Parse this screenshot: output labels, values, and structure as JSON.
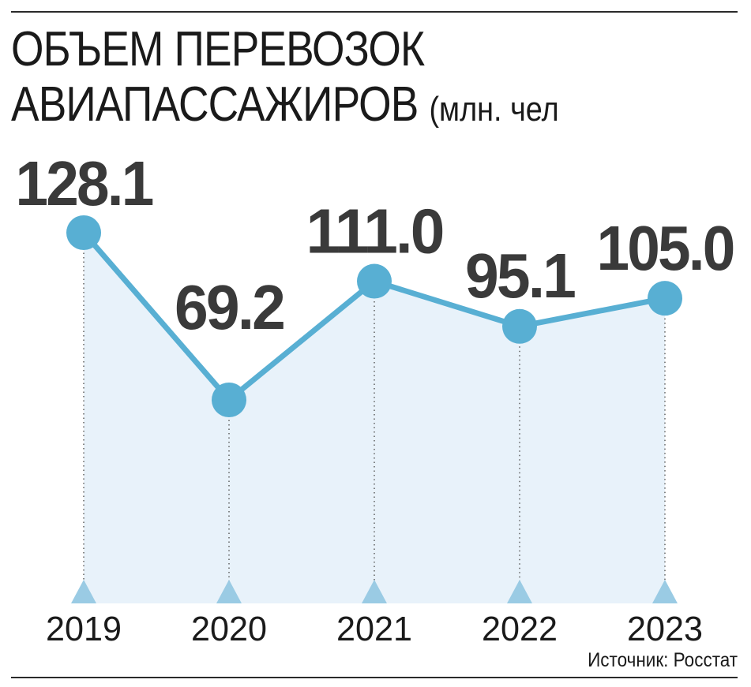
{
  "header": {
    "title_line1": "ОБЪЕМ ПЕРЕВОЗОК",
    "title_line2": "АВИАПАССАЖИРОВ",
    "unit": "(млн. чел"
  },
  "footer": {
    "source": "Источник: Росстат"
  },
  "colors": {
    "line": "#58afd3",
    "marker": "#58afd3",
    "area_fill": "#e8f2fa",
    "triangle": "#9acbe4",
    "text": "#1a1a1a",
    "value_label": "#3a3a3a"
  },
  "chart_data": {
    "type": "line",
    "title": "ОБЪЕМ ПЕРЕВОЗОК АВИАПАССАЖИРОВ (млн. чел",
    "categories": [
      "2019",
      "2020",
      "2021",
      "2022",
      "2023"
    ],
    "series": [
      {
        "values": [
          128.1,
          69.2,
          111.0,
          95.1,
          105.0
        ],
        "labels": [
          "128.1",
          "69.2",
          "111.0",
          "95.1",
          "105.0"
        ]
      }
    ],
    "area_filled": true,
    "grid": false,
    "y_axis_visible": false
  }
}
